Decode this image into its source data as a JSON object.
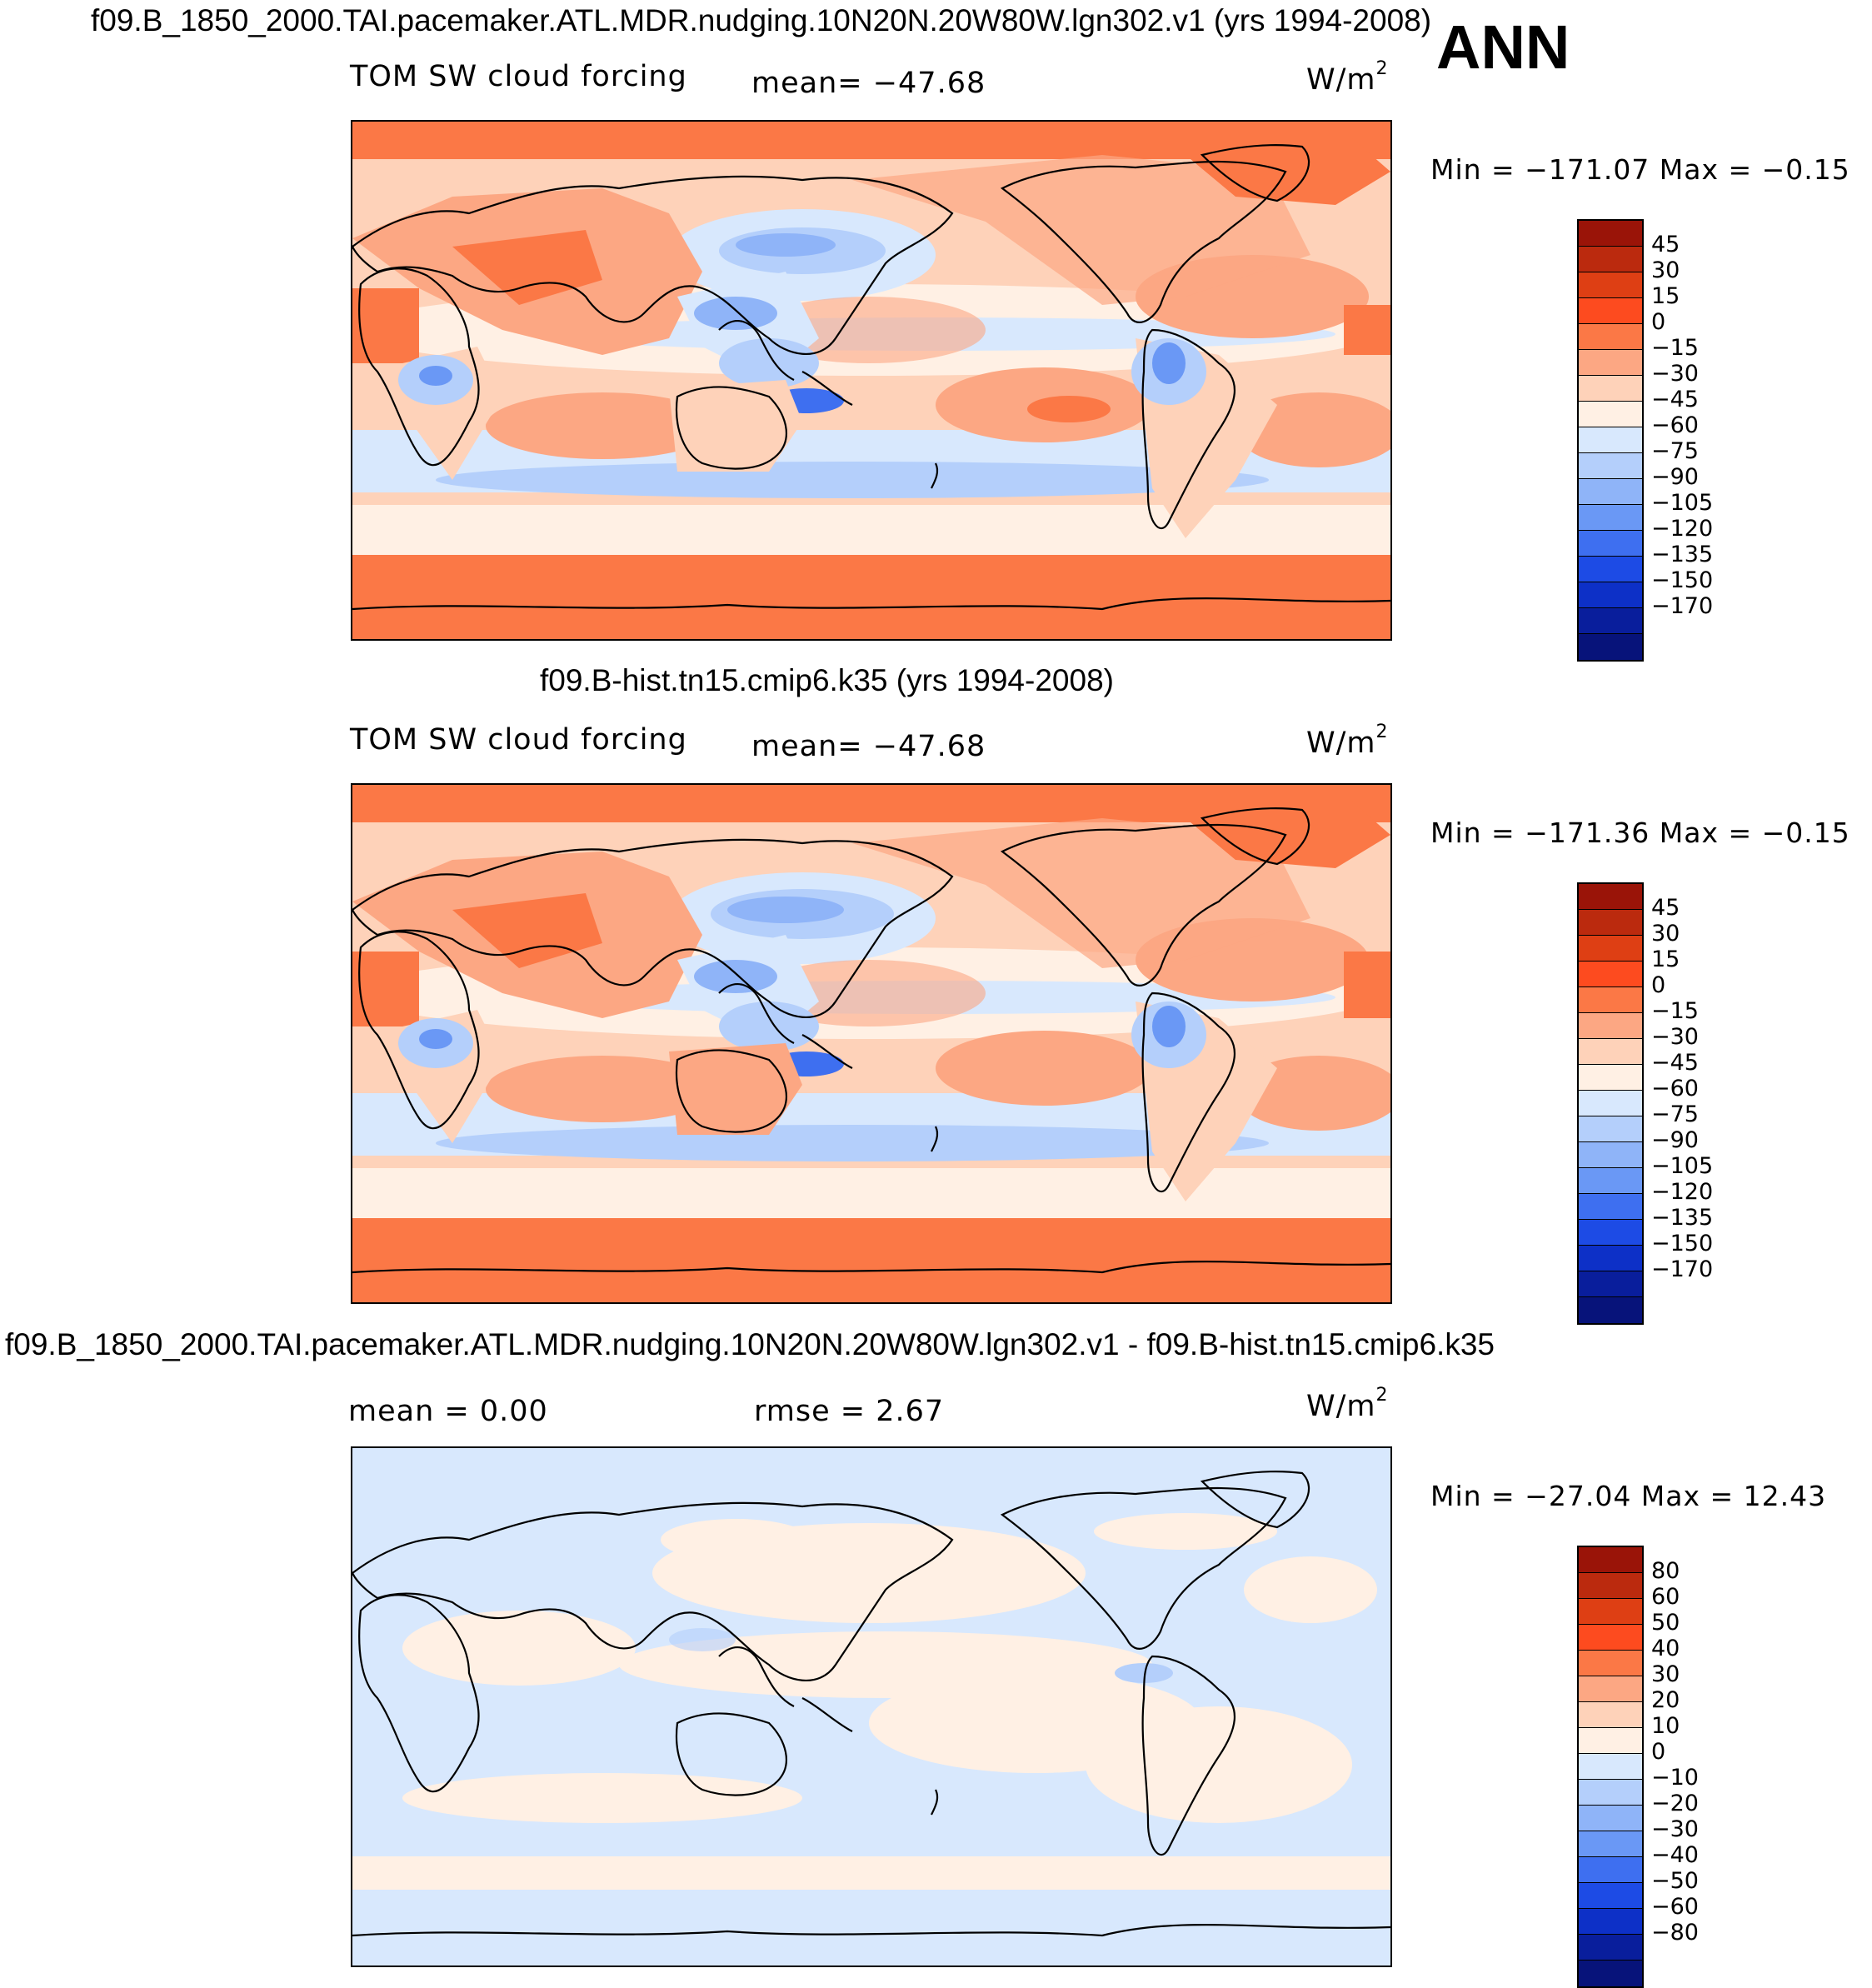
{
  "header": {
    "season": "ANN"
  },
  "units": "W/m",
  "units_sup": "2",
  "palettes": {
    "field": [
      "#9a1408",
      "#bb2a0e",
      "#de3f14",
      "#fd4b1f",
      "#fb7846",
      "#fca783",
      "#fed2b9",
      "#fff0e4",
      "#d8e8fd",
      "#b4cffb",
      "#8fb4f8",
      "#6a98f5",
      "#3e6ff0",
      "#1d4be5",
      "#0d30c7",
      "#091e9c",
      "#07137a"
    ],
    "diff": [
      "#9a1408",
      "#bb2a0e",
      "#de3f14",
      "#fd4b1f",
      "#fb7846",
      "#fca783",
      "#fed2b9",
      "#fff0e4",
      "#d8e8fd",
      "#b4cffb",
      "#8fb4f8",
      "#6a98f5",
      "#3e6ff0",
      "#1d4be5",
      "#0d30c7",
      "#091e9c",
      "#07137a"
    ]
  },
  "panels": [
    {
      "title": "f09.B_1850_2000.TAI.pacemaker.ATL.MDR.nudging.10N20N.20W80W.lgn302.v1 (yrs 1994-2008)",
      "left_label": "TOM SW cloud forcing",
      "center_label": "mean=  −47.68",
      "minmax": "Min  =  −171.07  Max  =    −0.15",
      "colorbar_ticks": [
        "45",
        "30",
        "15",
        "0",
        "−15",
        "−30",
        "−45",
        "−60",
        "−75",
        "−90",
        "−105",
        "−120",
        "−135",
        "−150",
        "−170"
      ]
    },
    {
      "title": "f09.B-hist.tn15.cmip6.k35 (yrs 1994-2008)",
      "left_label": "TOM SW cloud forcing",
      "center_label": "mean=  −47.68",
      "minmax": "Min  =  −171.36  Max  =    −0.15",
      "colorbar_ticks": [
        "45",
        "30",
        "15",
        "0",
        "−15",
        "−30",
        "−45",
        "−60",
        "−75",
        "−90",
        "−105",
        "−120",
        "−135",
        "−150",
        "−170"
      ]
    },
    {
      "title": "f09.B_1850_2000.TAI.pacemaker.ATL.MDR.nudging.10N20N.20W80W.lgn302.v1 - f09.B-hist.tn15.cmip6.k35",
      "left_label": "mean  =     0.00",
      "center_label": "rmse  =     2.67",
      "minmax": "Min  =  −27.04  Max  =    12.43",
      "colorbar_ticks": [
        "80",
        "60",
        "50",
        "40",
        "30",
        "20",
        "10",
        "0",
        "−10",
        "−20",
        "−30",
        "−40",
        "−50",
        "−60",
        "−80"
      ]
    }
  ]
}
